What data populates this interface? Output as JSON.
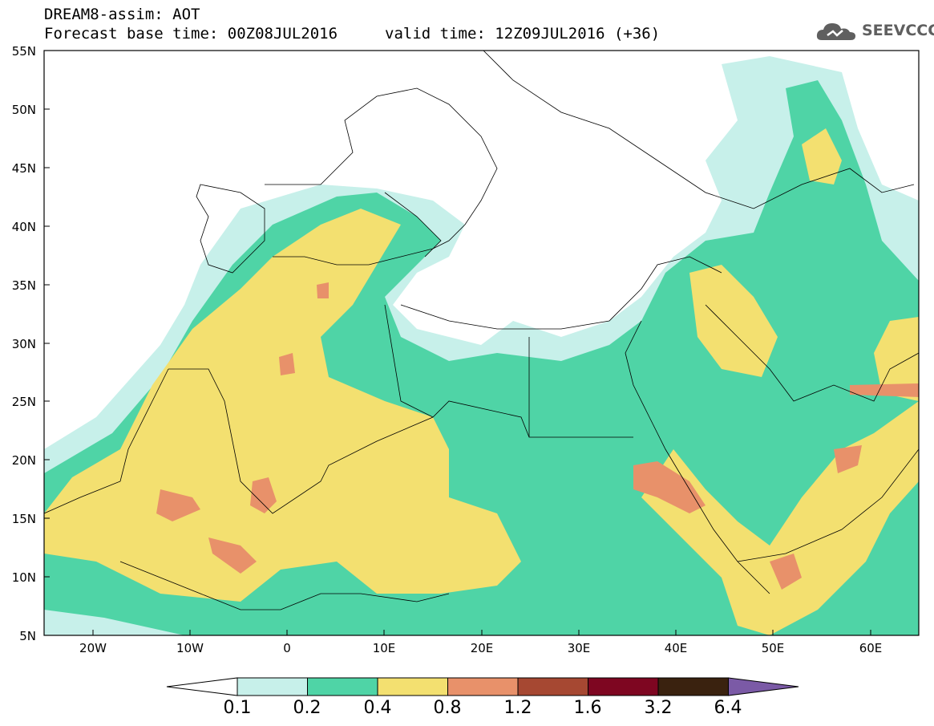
{
  "header": {
    "title_line1": "DREAM8-assim: AOT",
    "title_line2": "Forecast base time: 00Z08JUL2016",
    "valid_time": "valid time: 12Z09JUL2016 (+36)",
    "logo_text": "SEEVCCC"
  },
  "map": {
    "lat_labels": [
      "55N",
      "50N",
      "45N",
      "40N",
      "35N",
      "30N",
      "25N",
      "20N",
      "15N",
      "10N",
      "5N"
    ],
    "lon_labels": [
      "20W",
      "10W",
      "0",
      "10E",
      "20E",
      "30E",
      "40E",
      "50E",
      "60E"
    ],
    "lon_range": [
      -25,
      65
    ],
    "lat_range": [
      5,
      55
    ]
  },
  "colorbar": {
    "levels": [
      "0.1",
      "0.2",
      "0.4",
      "0.8",
      "1.2",
      "1.6",
      "3.2",
      "6.4"
    ],
    "colors": [
      "#c7f0ea",
      "#4fd4a6",
      "#f3e070",
      "#e8916a",
      "#a64832",
      "#7e0621",
      "#3a220f",
      "#7b5aa6"
    ],
    "low_extend_color": "#ffffff"
  }
}
